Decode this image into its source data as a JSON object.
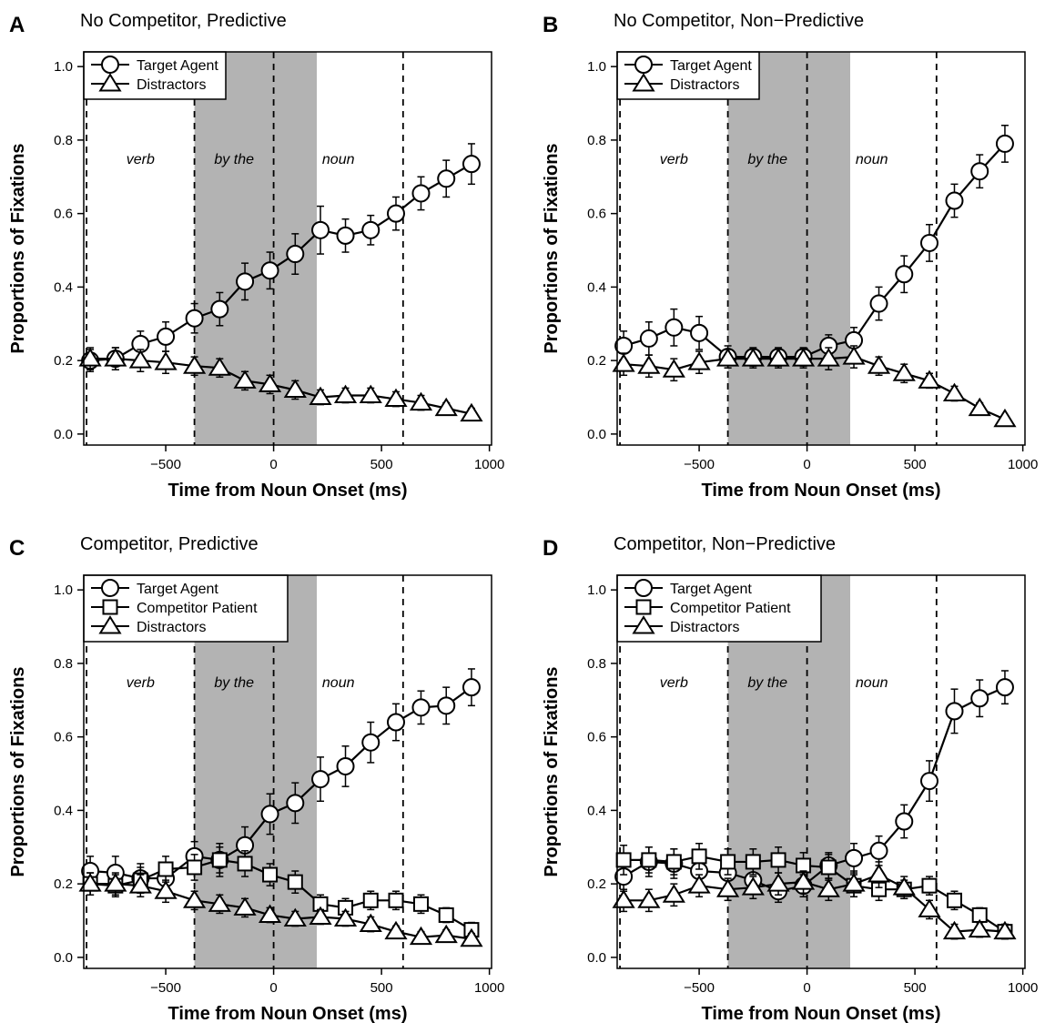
{
  "chart_data": [
    {
      "type": "line",
      "panel": "A",
      "title": "No Competitor, Predictive",
      "xlabel": "Time from Noun Onset (ms)",
      "ylabel": "Proportions of Fixations",
      "xlim": [
        -880,
        1010
      ],
      "ylim": [
        -0.03,
        1.04
      ],
      "xticks": [
        -500,
        0,
        500,
        1000
      ],
      "yticks": [
        0.0,
        0.2,
        0.4,
        0.6,
        0.8,
        1.0
      ],
      "vlines": [
        -867,
        -367,
        0,
        600
      ],
      "shaded_region": [
        -367,
        200
      ],
      "region_labels": [
        {
          "text": "verb",
          "x": -617,
          "y": 0.75
        },
        {
          "text": "by the",
          "x": -183,
          "y": 0.75
        },
        {
          "text": "noun",
          "x": 300,
          "y": 0.75
        }
      ],
      "legend_position": "top-left",
      "grid": false,
      "x": [
        -850,
        -733,
        -617,
        -500,
        -367,
        -250,
        -133,
        -17,
        100,
        217,
        333,
        450,
        567,
        683,
        800,
        917
      ],
      "series": [
        {
          "name": "Target Agent",
          "marker": "circle",
          "values": [
            0.2,
            0.205,
            0.245,
            0.265,
            0.315,
            0.34,
            0.415,
            0.445,
            0.49,
            0.555,
            0.54,
            0.555,
            0.6,
            0.655,
            0.695,
            0.735
          ],
          "errors": [
            0.03,
            0.03,
            0.035,
            0.04,
            0.04,
            0.045,
            0.05,
            0.05,
            0.055,
            0.065,
            0.045,
            0.04,
            0.045,
            0.045,
            0.05,
            0.055
          ]
        },
        {
          "name": "Distractors",
          "marker": "triangle",
          "values": [
            0.205,
            0.205,
            0.2,
            0.195,
            0.185,
            0.18,
            0.145,
            0.135,
            0.12,
            0.1,
            0.105,
            0.105,
            0.095,
            0.085,
            0.07,
            0.055
          ],
          "errors": [
            0.03,
            0.03,
            0.03,
            0.03,
            0.025,
            0.025,
            0.025,
            0.025,
            0.025,
            0.02,
            0.02,
            0.02,
            0.02,
            0.02,
            0.015,
            0.015
          ]
        }
      ]
    },
    {
      "type": "line",
      "panel": "B",
      "title": "No Competitor, Non−Predictive",
      "xlabel": "Time from Noun Onset (ms)",
      "ylabel": "Proportions of Fixations",
      "xlim": [
        -880,
        1010
      ],
      "ylim": [
        -0.03,
        1.04
      ],
      "xticks": [
        -500,
        0,
        500,
        1000
      ],
      "yticks": [
        0.0,
        0.2,
        0.4,
        0.6,
        0.8,
        1.0
      ],
      "vlines": [
        -867,
        -367,
        0,
        600
      ],
      "shaded_region": [
        -367,
        200
      ],
      "region_labels": [
        {
          "text": "verb",
          "x": -617,
          "y": 0.75
        },
        {
          "text": "by the",
          "x": -183,
          "y": 0.75
        },
        {
          "text": "noun",
          "x": 300,
          "y": 0.75
        }
      ],
      "legend_position": "top-left",
      "grid": false,
      "x": [
        -850,
        -733,
        -617,
        -500,
        -367,
        -250,
        -133,
        -17,
        100,
        217,
        333,
        450,
        567,
        683,
        800,
        917
      ],
      "series": [
        {
          "name": "Target Agent",
          "marker": "circle",
          "values": [
            0.24,
            0.26,
            0.29,
            0.275,
            0.21,
            0.21,
            0.21,
            0.21,
            0.24,
            0.255,
            0.355,
            0.435,
            0.52,
            0.635,
            0.715,
            0.79
          ],
          "errors": [
            0.04,
            0.045,
            0.05,
            0.045,
            0.03,
            0.025,
            0.025,
            0.025,
            0.03,
            0.035,
            0.045,
            0.05,
            0.05,
            0.045,
            0.045,
            0.05
          ]
        },
        {
          "name": "Distractors",
          "marker": "triangle",
          "values": [
            0.19,
            0.185,
            0.175,
            0.195,
            0.205,
            0.205,
            0.205,
            0.205,
            0.205,
            0.21,
            0.185,
            0.165,
            0.145,
            0.11,
            0.07,
            0.04
          ],
          "errors": [
            0.03,
            0.03,
            0.03,
            0.03,
            0.025,
            0.025,
            0.025,
            0.025,
            0.03,
            0.03,
            0.025,
            0.025,
            0.02,
            0.02,
            0.015,
            0.01
          ]
        }
      ]
    },
    {
      "type": "line",
      "panel": "C",
      "title": "Competitor, Predictive",
      "xlabel": "Time from Noun Onset (ms)",
      "ylabel": "Proportions of Fixations",
      "xlim": [
        -880,
        1010
      ],
      "ylim": [
        -0.03,
        1.04
      ],
      "xticks": [
        -500,
        0,
        500,
        1000
      ],
      "yticks": [
        0.0,
        0.2,
        0.4,
        0.6,
        0.8,
        1.0
      ],
      "vlines": [
        -867,
        -367,
        0,
        600
      ],
      "shaded_region": [
        -367,
        200
      ],
      "region_labels": [
        {
          "text": "verb",
          "x": -617,
          "y": 0.75
        },
        {
          "text": "by the",
          "x": -183,
          "y": 0.75
        },
        {
          "text": "noun",
          "x": 300,
          "y": 0.75
        }
      ],
      "legend_position": "top-left",
      "grid": false,
      "x": [
        -850,
        -733,
        -617,
        -500,
        -367,
        -250,
        -133,
        -17,
        100,
        217,
        333,
        450,
        567,
        683,
        800,
        917
      ],
      "series": [
        {
          "name": "Target Agent",
          "marker": "circle",
          "values": [
            0.235,
            0.23,
            0.215,
            0.215,
            0.275,
            0.265,
            0.305,
            0.39,
            0.42,
            0.485,
            0.52,
            0.585,
            0.64,
            0.68,
            0.685,
            0.735
          ],
          "errors": [
            0.04,
            0.045,
            0.04,
            0.04,
            0.04,
            0.045,
            0.05,
            0.055,
            0.055,
            0.06,
            0.055,
            0.055,
            0.05,
            0.045,
            0.05,
            0.05
          ]
        },
        {
          "name": "Competitor Patient",
          "marker": "square",
          "values": [
            0.2,
            0.195,
            0.21,
            0.24,
            0.245,
            0.265,
            0.255,
            0.225,
            0.205,
            0.145,
            0.135,
            0.155,
            0.155,
            0.145,
            0.115,
            0.075
          ],
          "errors": [
            0.03,
            0.03,
            0.035,
            0.035,
            0.035,
            0.035,
            0.035,
            0.03,
            0.03,
            0.025,
            0.025,
            0.025,
            0.025,
            0.025,
            0.02,
            0.02
          ]
        },
        {
          "name": "Distractors",
          "marker": "triangle",
          "values": [
            0.2,
            0.2,
            0.195,
            0.18,
            0.155,
            0.145,
            0.135,
            0.115,
            0.105,
            0.11,
            0.105,
            0.09,
            0.07,
            0.055,
            0.06,
            0.05
          ],
          "errors": [
            0.03,
            0.03,
            0.03,
            0.03,
            0.025,
            0.025,
            0.025,
            0.02,
            0.02,
            0.02,
            0.02,
            0.02,
            0.015,
            0.015,
            0.015,
            0.015
          ]
        }
      ]
    },
    {
      "type": "line",
      "panel": "D",
      "title": "Competitor, Non−Predictive",
      "xlabel": "Time from Noun Onset (ms)",
      "ylabel": "Proportions of Fixations",
      "xlim": [
        -880,
        1010
      ],
      "ylim": [
        -0.03,
        1.04
      ],
      "xticks": [
        -500,
        0,
        500,
        1000
      ],
      "yticks": [
        0.0,
        0.2,
        0.4,
        0.6,
        0.8,
        1.0
      ],
      "vlines": [
        -867,
        -367,
        0,
        600
      ],
      "shaded_region": [
        -367,
        200
      ],
      "region_labels": [
        {
          "text": "verb",
          "x": -617,
          "y": 0.75
        },
        {
          "text": "by the",
          "x": -183,
          "y": 0.75
        },
        {
          "text": "noun",
          "x": 300,
          "y": 0.75
        }
      ],
      "legend_position": "top-left",
      "grid": false,
      "x": [
        -850,
        -733,
        -617,
        -500,
        -367,
        -250,
        -133,
        -17,
        100,
        217,
        333,
        450,
        567,
        683,
        800,
        917
      ],
      "series": [
        {
          "name": "Target Agent",
          "marker": "circle",
          "values": [
            0.22,
            0.26,
            0.255,
            0.235,
            0.23,
            0.21,
            0.18,
            0.195,
            0.25,
            0.27,
            0.29,
            0.37,
            0.48,
            0.67,
            0.705,
            0.735
          ],
          "errors": [
            0.04,
            0.04,
            0.04,
            0.04,
            0.04,
            0.035,
            0.03,
            0.03,
            0.035,
            0.04,
            0.04,
            0.045,
            0.055,
            0.06,
            0.05,
            0.045
          ]
        },
        {
          "name": "Competitor Patient",
          "marker": "square",
          "values": [
            0.265,
            0.265,
            0.26,
            0.275,
            0.26,
            0.26,
            0.265,
            0.25,
            0.245,
            0.195,
            0.185,
            0.185,
            0.195,
            0.155,
            0.115,
            0.07
          ],
          "errors": [
            0.04,
            0.035,
            0.035,
            0.035,
            0.035,
            0.035,
            0.035,
            0.035,
            0.035,
            0.03,
            0.03,
            0.025,
            0.025,
            0.025,
            0.02,
            0.02
          ]
        },
        {
          "name": "Distractors",
          "marker": "triangle",
          "values": [
            0.155,
            0.155,
            0.17,
            0.195,
            0.185,
            0.19,
            0.2,
            0.205,
            0.185,
            0.2,
            0.225,
            0.19,
            0.13,
            0.07,
            0.075,
            0.07
          ],
          "errors": [
            0.03,
            0.03,
            0.03,
            0.03,
            0.03,
            0.03,
            0.03,
            0.03,
            0.03,
            0.035,
            0.035,
            0.03,
            0.025,
            0.02,
            0.02,
            0.02
          ]
        }
      ]
    }
  ]
}
